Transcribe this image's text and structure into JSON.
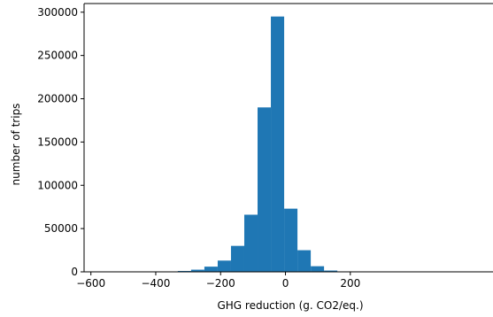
{
  "chart_data": {
    "type": "bar",
    "title": "",
    "xlabel": "GHG reduction (g. CO2/eq.)",
    "ylabel": "number of trips",
    "xlim": [
      -621,
      640
    ],
    "ylim": [
      0,
      310000
    ],
    "grid": false,
    "bar_color": "#1f77b4",
    "bins": [
      {
        "x0": -373,
        "x1": -332,
        "count": 100
      },
      {
        "x0": -332,
        "x1": -291,
        "count": 1000
      },
      {
        "x0": -291,
        "x1": -250,
        "count": 2500
      },
      {
        "x0": -250,
        "x1": -209,
        "count": 6000
      },
      {
        "x0": -209,
        "x1": -168,
        "count": 13000
      },
      {
        "x0": -168,
        "x1": -127,
        "count": 30000
      },
      {
        "x0": -127,
        "x1": -86,
        "count": 66000
      },
      {
        "x0": -86,
        "x1": -45,
        "count": 190000
      },
      {
        "x0": -45,
        "x1": -4,
        "count": 295000
      },
      {
        "x0": -4,
        "x1": 37,
        "count": 73000
      },
      {
        "x0": 37,
        "x1": 78,
        "count": 25000
      },
      {
        "x0": 78,
        "x1": 119,
        "count": 6500
      },
      {
        "x0": 119,
        "x1": 160,
        "count": 1500
      },
      {
        "x0": 160,
        "x1": 201,
        "count": 200
      }
    ],
    "xticks": [
      {
        "value": -600,
        "label": "−600"
      },
      {
        "value": -400,
        "label": "−400"
      },
      {
        "value": -200,
        "label": "−200"
      },
      {
        "value": 0,
        "label": "0"
      },
      {
        "value": 200,
        "label": "200"
      }
    ],
    "yticks": [
      {
        "value": 0,
        "label": "0"
      },
      {
        "value": 50000,
        "label": "50000"
      },
      {
        "value": 100000,
        "label": "100000"
      },
      {
        "value": 150000,
        "label": "150000"
      },
      {
        "value": 200000,
        "label": "200000"
      },
      {
        "value": 250000,
        "label": "250000"
      },
      {
        "value": 300000,
        "label": "300000"
      }
    ]
  }
}
